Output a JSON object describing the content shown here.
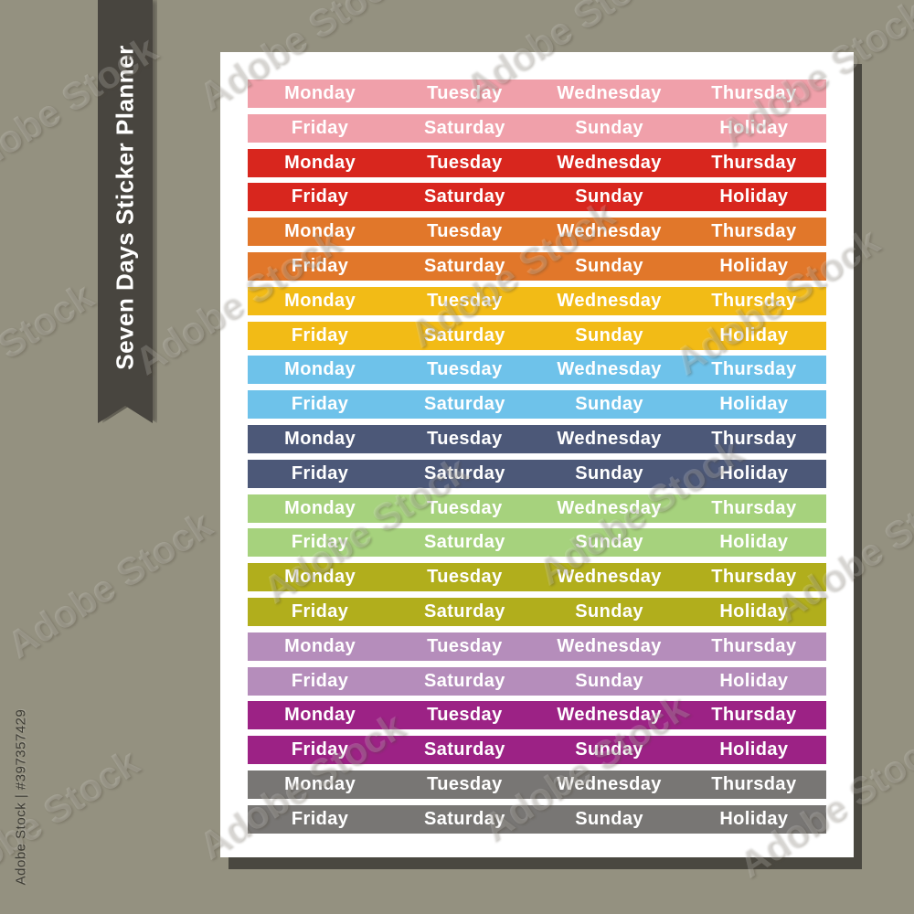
{
  "background_color": "#949180",
  "ribbon": {
    "label": "Seven Days Sticker Planner",
    "color": "#48453f",
    "text_color": "#ffffff"
  },
  "watermark": {
    "text": "Adobe Stock",
    "id_text": "Adobe Stock | #397357429"
  },
  "sheet": {
    "background": "#ffffff",
    "text_color": "#ffffff",
    "row_labels": {
      "weekdays": [
        "Monday",
        "Tuesday",
        "Wednesday",
        "Thursday"
      ],
      "weekend": [
        "Friday",
        "Saturday",
        "Sunday",
        "Holiday"
      ]
    },
    "colors": [
      {
        "name": "pink",
        "hex": "#f0a0aa"
      },
      {
        "name": "red",
        "hex": "#d8261e"
      },
      {
        "name": "orange",
        "hex": "#e1772a"
      },
      {
        "name": "yellow",
        "hex": "#f2bb16"
      },
      {
        "name": "sky-blue",
        "hex": "#6ec2ea"
      },
      {
        "name": "slate-blue",
        "hex": "#4c5878"
      },
      {
        "name": "light-green",
        "hex": "#a6d27d"
      },
      {
        "name": "olive-green",
        "hex": "#b1ae1c"
      },
      {
        "name": "lilac",
        "hex": "#b58dbb"
      },
      {
        "name": "purple",
        "hex": "#9c2285"
      },
      {
        "name": "gray",
        "hex": "#787674"
      }
    ]
  }
}
